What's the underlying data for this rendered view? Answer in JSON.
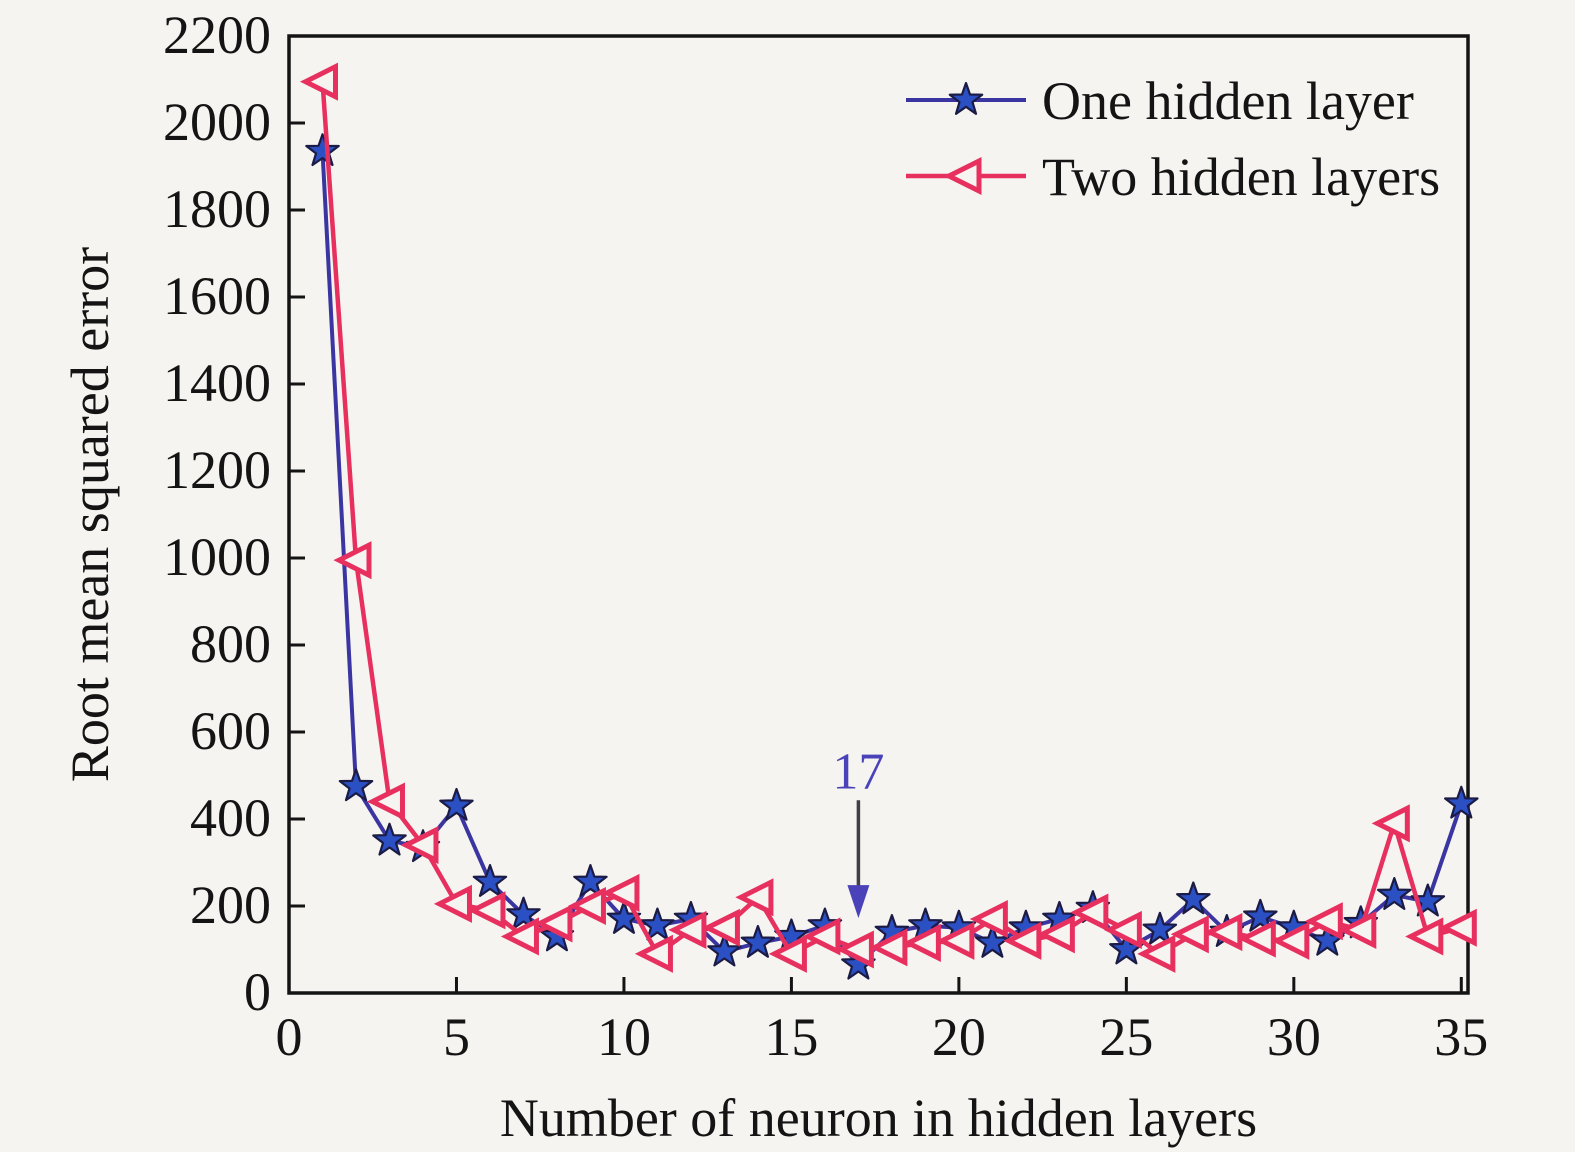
{
  "figure": {
    "background_color": "#f5f4f1",
    "text_color": "#141414"
  },
  "chart_data": {
    "type": "line",
    "title": "",
    "xlabel": "Number of neuron in hidden layers",
    "ylabel": "Root mean squared error",
    "xlim": [
      0,
      35.2
    ],
    "ylim": [
      0,
      2200
    ],
    "x_ticks": [
      0,
      5,
      10,
      15,
      20,
      25,
      30,
      35
    ],
    "y_ticks": [
      0,
      200,
      400,
      600,
      800,
      1000,
      1200,
      1400,
      1600,
      1800,
      2000,
      2200
    ],
    "grid": false,
    "legend": {
      "position": "upper-right-inside",
      "border": false
    },
    "x": [
      1,
      2,
      3,
      4,
      5,
      6,
      7,
      8,
      9,
      10,
      11,
      12,
      13,
      14,
      15,
      16,
      17,
      18,
      19,
      20,
      21,
      22,
      23,
      24,
      25,
      26,
      27,
      28,
      29,
      30,
      31,
      32,
      33,
      34,
      35
    ],
    "series": [
      {
        "name": "One hidden layer",
        "line_color": "#3a35a0",
        "marker": "star",
        "marker_fill": "#2a50c4",
        "marker_edge": "#1b1b45",
        "values": [
          1935,
          475,
          350,
          335,
          430,
          255,
          180,
          130,
          255,
          170,
          155,
          170,
          95,
          115,
          130,
          155,
          65,
          140,
          155,
          150,
          115,
          150,
          170,
          195,
          100,
          145,
          215,
          140,
          175,
          150,
          120,
          160,
          225,
          210,
          435
        ]
      },
      {
        "name": "Two hidden layers",
        "line_color": "#e8305f",
        "marker": "triangle-left",
        "marker_fill": "none",
        "marker_edge": "#e8305f",
        "values": [
          2095,
          995,
          440,
          340,
          205,
          190,
          130,
          160,
          200,
          230,
          90,
          145,
          150,
          220,
          90,
          130,
          100,
          105,
          115,
          120,
          170,
          120,
          135,
          185,
          145,
          90,
          135,
          140,
          125,
          120,
          165,
          145,
          390,
          130,
          150
        ]
      }
    ],
    "annotation": {
      "text": "17",
      "color": "#4a42b8",
      "arrow_color": "#3f3f46",
      "x": 17,
      "label_y": 470,
      "arrow_from_y": 443,
      "arrow_tip_y": 172
    }
  }
}
